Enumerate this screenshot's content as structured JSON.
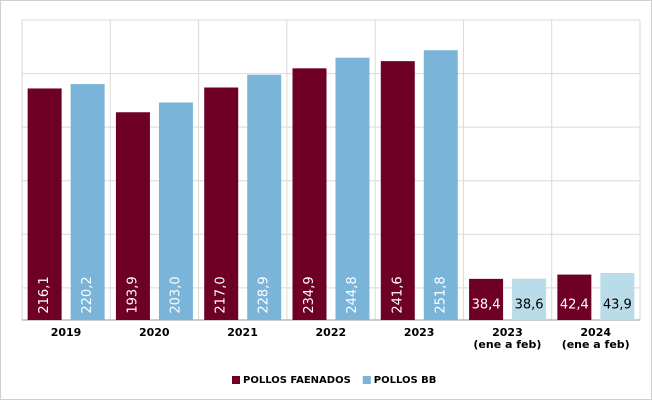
{
  "chart_data": {
    "type": "bar",
    "categories": [
      "2019",
      "2020",
      "2021",
      "2022",
      "2023",
      "2023\n(ene a feb)",
      "2024\n(ene a feb)"
    ],
    "series": [
      {
        "name": "POLLOS FAENADOS",
        "color": "#6e0026",
        "colors": [
          "#6e0026",
          "#6e0026",
          "#6e0026",
          "#6e0026",
          "#6e0026",
          "#6e0026",
          "#6e0026"
        ],
        "values": [
          216.1,
          193.9,
          217.0,
          234.9,
          241.6,
          38.4,
          42.4
        ],
        "value_labels": [
          "216,1",
          "193,9",
          "217,0",
          "234,9",
          "241,6",
          "38,4",
          "42,4"
        ]
      },
      {
        "name": "POLLOS BB",
        "color": "#7ab4d9",
        "colors": [
          "#7ab4d9",
          "#7ab4d9",
          "#7ab4d9",
          "#7ab4d9",
          "#7ab4d9",
          "#b8dde9",
          "#b8dde9"
        ],
        "values": [
          220.2,
          203.0,
          228.9,
          244.8,
          251.8,
          38.6,
          43.9
        ],
        "value_labels": [
          "220,2",
          "203,0",
          "228,9",
          "244,8",
          "251,8",
          "38,6",
          "43,9"
        ]
      }
    ],
    "ylim": [
      0,
      280
    ],
    "yticks": [
      30,
      80,
      130,
      180,
      230,
      280
    ],
    "grid": true,
    "legend": "bottom"
  }
}
